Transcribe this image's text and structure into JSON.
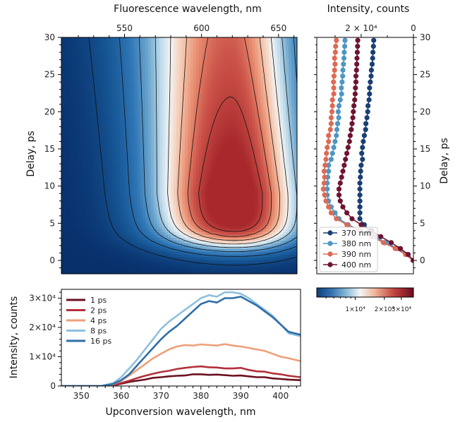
{
  "chart_data": [
    {
      "type": "heatmap",
      "xlabel": "Fluorescence wavelength, nm",
      "ylabel": "Delay, ps",
      "xlim": [
        509,
        662
      ],
      "ylim": [
        -1.8,
        30
      ],
      "xticks": [
        550,
        600,
        650
      ],
      "yticks": [
        0,
        5,
        10,
        15,
        20,
        25,
        30
      ],
      "colormap": "diverging red-blue (blue = low, red = high)",
      "contours": true
    },
    {
      "type": "line",
      "xlabel": "Intensity, counts",
      "ylabel": "Delay, ps",
      "xlim": [
        37000,
        0
      ],
      "ylim": [
        -1.8,
        30
      ],
      "xtick_labels": [
        "2 × 10⁴",
        "0"
      ],
      "xticks": [
        20000,
        0
      ],
      "yticks": [
        0,
        5,
        10,
        15,
        20,
        25,
        30
      ],
      "legend_position": "lower-left",
      "delays": [
        0,
        0.8,
        1.6,
        2.4,
        3.2,
        4.0,
        4.8,
        5.6,
        6.4,
        7.2,
        8.0,
        8.8,
        9.6,
        10.4,
        11.2,
        12.0,
        12.8,
        13.6,
        14.4,
        15.2,
        16.0,
        16.8,
        17.6,
        18.4,
        19.2,
        20.0,
        20.8,
        21.6,
        22.4,
        23.2,
        24.0,
        24.8,
        25.6,
        26.4,
        27.2,
        28.0,
        28.8,
        29.6
      ],
      "series": [
        {
          "name": "370 nm",
          "color": "#1a3f73",
          "values": [
            100,
            3000,
            6500,
            11000,
            14500,
            16800,
            18800,
            20500,
            20500,
            20500,
            20500,
            20500,
            20500,
            20500,
            20300,
            20200,
            20000,
            19500,
            19800,
            19500,
            19200,
            18800,
            18300,
            18200,
            17800,
            17500,
            17400,
            17000,
            16800,
            16800,
            16500,
            16200,
            16100,
            15800,
            15600,
            15500,
            15300,
            15200
          ]
        },
        {
          "name": "380 nm",
          "color": "#4f96c4",
          "values": [
            100,
            2500,
            6000,
            10500,
            15000,
            20000,
            25000,
            28500,
            30000,
            31500,
            32500,
            33000,
            33000,
            33000,
            32800,
            32500,
            32500,
            31500,
            31000,
            30500,
            30000,
            29500,
            29300,
            29000,
            28600,
            28800,
            28500,
            28000,
            27500,
            27600,
            27300,
            27100,
            27000,
            26800,
            26600,
            26500,
            26300,
            26200
          ]
        },
        {
          "name": "390 nm",
          "color": "#de6a54",
          "values": [
            100,
            3000,
            7000,
            11500,
            16000,
            20500,
            25500,
            29500,
            31500,
            32500,
            33500,
            34000,
            34500,
            34200,
            34000,
            34200,
            33800,
            33500,
            33300,
            33000,
            32500,
            32500,
            31800,
            31500,
            31500,
            31200,
            31000,
            31000,
            30500,
            30500,
            30600,
            30400,
            30200,
            30000,
            30200,
            29900,
            29800,
            29500
          ]
        },
        {
          "name": "400 nm",
          "color": "#6e1430",
          "values": [
            100,
            2000,
            5000,
            8500,
            12500,
            16000,
            20000,
            23500,
            25500,
            27000,
            28000,
            28500,
            28500,
            28000,
            27500,
            27000,
            26500,
            26000,
            25500,
            25000,
            24500,
            24200,
            23800,
            23500,
            23200,
            23000,
            22800,
            22500,
            22300,
            22200,
            22000,
            22000,
            21800,
            21700,
            21600,
            21500,
            21400,
            21300
          ]
        }
      ]
    },
    {
      "type": "line",
      "xlabel": "Upconversion wavelength, nm",
      "ylabel": "Intensity, counts",
      "xlim": [
        345,
        405
      ],
      "ylim": [
        0,
        33000
      ],
      "xticks": [
        350,
        360,
        370,
        380,
        390,
        400
      ],
      "yticks": [
        0,
        10000,
        20000,
        30000
      ],
      "ytick_labels": [
        "0",
        "1×10⁴",
        "2×10⁴",
        "3×10⁴"
      ],
      "legend_position": "upper-left",
      "x": [
        345,
        350,
        355,
        358,
        360,
        362,
        364,
        366,
        368,
        370,
        372,
        374,
        376,
        378,
        380,
        382,
        384,
        386,
        388,
        390,
        392,
        394,
        396,
        398,
        400,
        402,
        405
      ],
      "series": [
        {
          "name": "1 ps",
          "color": "#6b1020",
          "values": [
            0,
            0,
            0,
            200,
            800,
            1400,
            1800,
            2200,
            2800,
            3000,
            3300,
            3500,
            3600,
            4000,
            4000,
            3800,
            3900,
            3700,
            3500,
            3600,
            3300,
            3000,
            3000,
            2600,
            2400,
            2200,
            2000
          ]
        },
        {
          "name": "2 ps",
          "color": "#b2303a",
          "values": [
            0,
            0,
            0,
            300,
            1000,
            1800,
            2700,
            3500,
            4200,
            4800,
            5200,
            5800,
            6200,
            6500,
            6700,
            6400,
            6300,
            6000,
            6000,
            6200,
            5500,
            5000,
            4900,
            4300,
            4000,
            3500,
            3000
          ]
        },
        {
          "name": "4 ps",
          "color": "#eea07a",
          "values": [
            0,
            0,
            0,
            600,
            1800,
            3600,
            5500,
            7500,
            9500,
            11000,
            12500,
            13500,
            14000,
            13800,
            14200,
            14000,
            13800,
            14300,
            13800,
            13500,
            13000,
            12500,
            12000,
            11000,
            10000,
            9500,
            8500
          ]
        },
        {
          "name": "8 ps",
          "color": "#8ec0de",
          "values": [
            0,
            0,
            0,
            1000,
            3000,
            6000,
            9000,
            12500,
            16000,
            19500,
            22000,
            24000,
            26000,
            28000,
            30000,
            31000,
            30500,
            32000,
            32000,
            31500,
            30000,
            28000,
            26000,
            24000,
            21000,
            18000,
            17000
          ]
        },
        {
          "name": "16 ps",
          "color": "#2f6ea8",
          "values": [
            0,
            0,
            0,
            700,
            2000,
            4000,
            7000,
            10000,
            13000,
            16000,
            18500,
            20500,
            23000,
            25500,
            28000,
            29000,
            28500,
            30000,
            30000,
            30500,
            29000,
            27500,
            25500,
            23500,
            21000,
            18500,
            17500
          ]
        }
      ]
    },
    {
      "type": "colorbar",
      "scale": "log",
      "range": [
        4000,
        40000
      ],
      "tick_values": [
        10000,
        20000,
        30000
      ],
      "tick_labels": [
        "1×10⁴",
        "2×10⁴",
        "3×10⁴"
      ]
    }
  ]
}
